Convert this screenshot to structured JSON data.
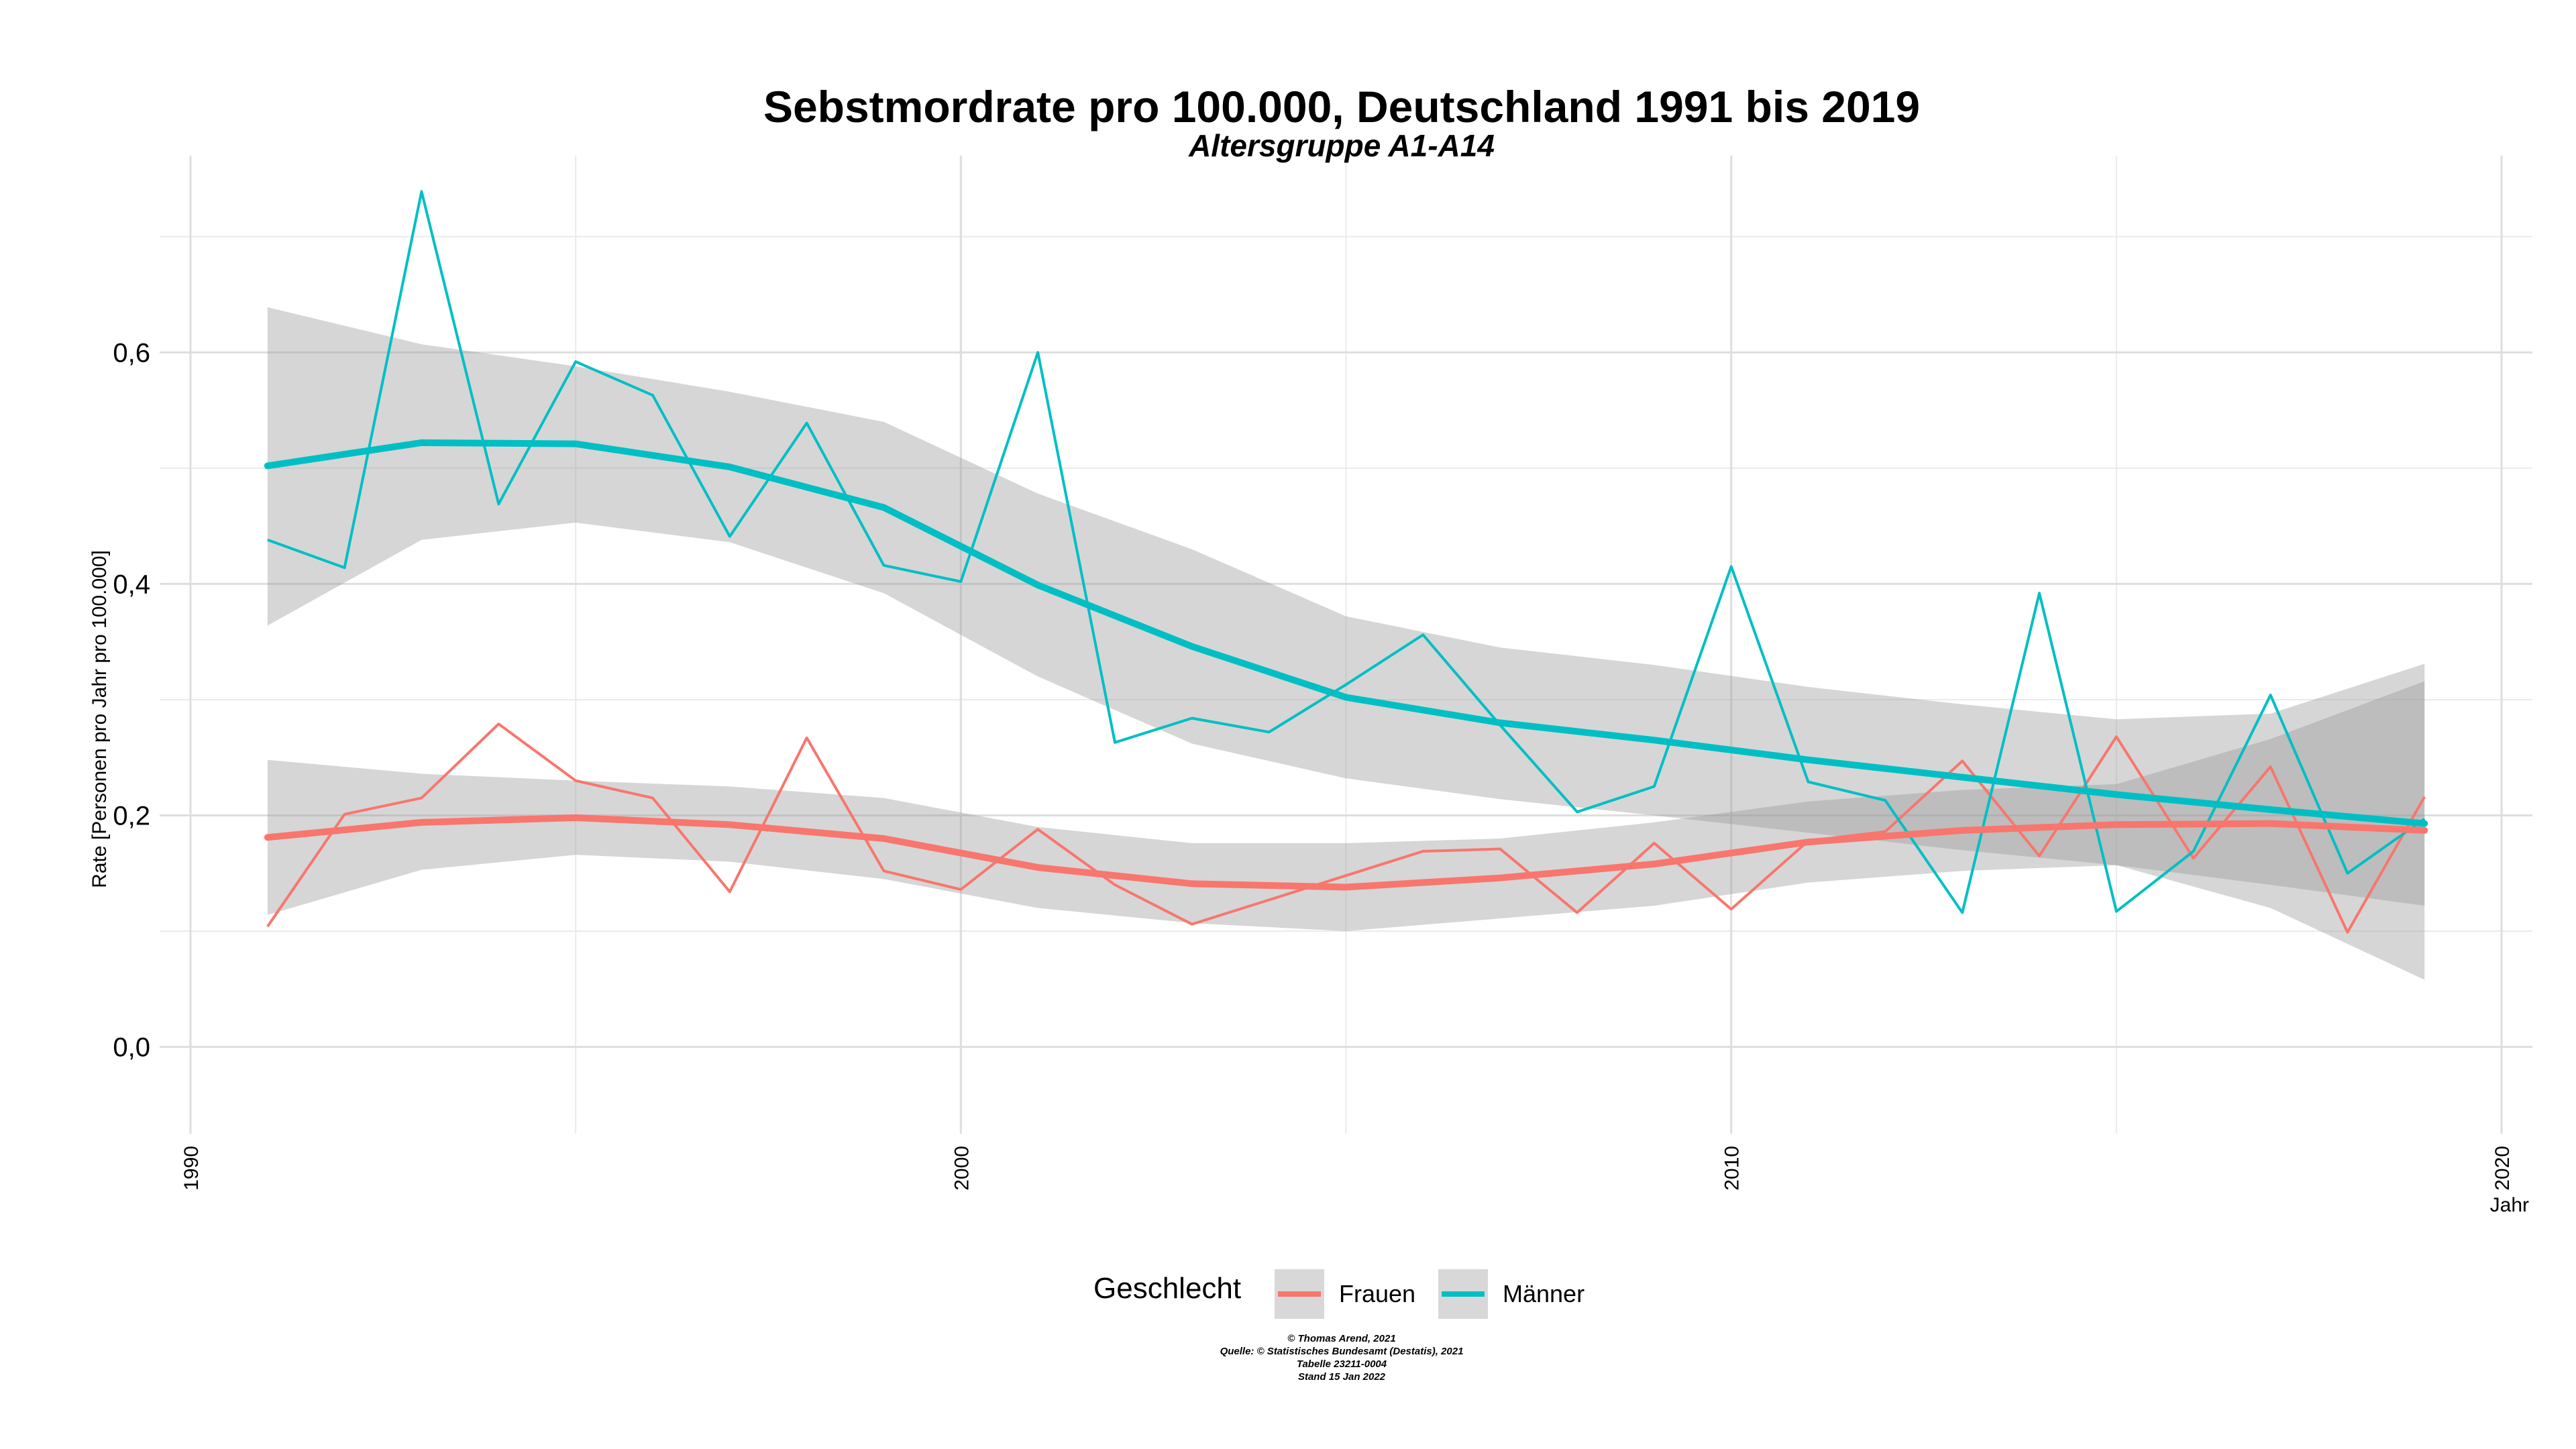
{
  "chart_data": {
    "type": "line",
    "title": "Sebstmordrate pro 100.000, Deutschland  1991 bis 2019",
    "subtitle": "Altersgruppe A1-A14",
    "xlabel": "Jahr",
    "ylabel": "Rate [Personen pro Jahr pro 100.000]",
    "xlim": [
      1989.6,
      2020.4
    ],
    "ylim": [
      -0.075,
      0.77
    ],
    "x_ticks": [
      1990,
      2000,
      2010,
      2020
    ],
    "y_ticks": [
      0.0,
      0.2,
      0.4,
      0.6
    ],
    "y_tick_labels": [
      "0,0",
      "0,2",
      "0,4",
      "0,6"
    ],
    "x_tick_labels": [
      "1990",
      "2000",
      "2010",
      "2020"
    ],
    "grid": true,
    "legend": {
      "title": "Geschlecht",
      "position": "bottom",
      "entries": [
        "Frauen",
        "Männer"
      ]
    },
    "x": [
      1991,
      1992,
      1993,
      1994,
      1995,
      1996,
      1997,
      1998,
      1999,
      2000,
      2001,
      2002,
      2003,
      2004,
      2005,
      2006,
      2007,
      2008,
      2009,
      2010,
      2011,
      2012,
      2013,
      2014,
      2015,
      2016,
      2017,
      2018,
      2019
    ],
    "series": [
      {
        "name": "Frauen",
        "color": "#F8766D",
        "values": [
          0.104,
          0.201,
          0.215,
          0.279,
          0.23,
          0.215,
          0.134,
          0.267,
          0.152,
          0.136,
          0.188,
          0.14,
          0.106,
          0.127,
          0.148,
          0.169,
          0.171,
          0.116,
          0.176,
          0.119,
          0.178,
          0.186,
          0.247,
          0.165,
          0.268,
          0.163,
          0.242,
          0.099,
          0.216
        ],
        "smooth": {
          "x": [
            1991,
            1993,
            1995,
            1997,
            1999,
            2001,
            2003,
            2005,
            2007,
            2009,
            2011,
            2013,
            2015,
            2017,
            2019
          ],
          "fit": [
            0.181,
            0.194,
            0.198,
            0.192,
            0.18,
            0.155,
            0.141,
            0.138,
            0.146,
            0.158,
            0.177,
            0.187,
            0.192,
            0.193,
            0.187
          ],
          "lower": [
            0.114,
            0.153,
            0.166,
            0.16,
            0.145,
            0.12,
            0.107,
            0.1,
            0.111,
            0.122,
            0.142,
            0.152,
            0.157,
            0.12,
            0.058
          ],
          "upper": [
            0.248,
            0.236,
            0.23,
            0.225,
            0.215,
            0.19,
            0.176,
            0.176,
            0.18,
            0.194,
            0.212,
            0.222,
            0.227,
            0.266,
            0.316
          ]
        }
      },
      {
        "name": "Männer",
        "color": "#00BFC4",
        "values": [
          0.438,
          0.414,
          0.739,
          0.469,
          0.592,
          0.563,
          0.441,
          0.539,
          0.416,
          0.402,
          0.6,
          0.263,
          0.284,
          0.272,
          0.313,
          0.356,
          0.278,
          0.203,
          0.225,
          0.415,
          0.229,
          0.213,
          0.116,
          0.392,
          0.117,
          0.169,
          0.304,
          0.15,
          0.197
        ],
        "smooth": {
          "x": [
            1991,
            1993,
            1995,
            1997,
            1999,
            2001,
            2003,
            2005,
            2007,
            2009,
            2011,
            2013,
            2015,
            2017,
            2019
          ],
          "fit": [
            0.502,
            0.522,
            0.521,
            0.501,
            0.466,
            0.399,
            0.346,
            0.302,
            0.28,
            0.265,
            0.248,
            0.233,
            0.218,
            0.205,
            0.193
          ],
          "lower": [
            0.364,
            0.438,
            0.453,
            0.436,
            0.392,
            0.32,
            0.262,
            0.232,
            0.214,
            0.2,
            0.185,
            0.17,
            0.157,
            0.14,
            0.122
          ],
          "upper": [
            0.639,
            0.607,
            0.588,
            0.566,
            0.54,
            0.478,
            0.43,
            0.372,
            0.345,
            0.33,
            0.311,
            0.296,
            0.283,
            0.288,
            0.331
          ]
        }
      }
    ],
    "caption": [
      "© Thomas Arend, 2021",
      "Quelle: © Statistisches Bundesamt (Destatis), 2021",
      "Tabelle 23211-0004",
      "Stand 15 Jan 2022"
    ]
  }
}
